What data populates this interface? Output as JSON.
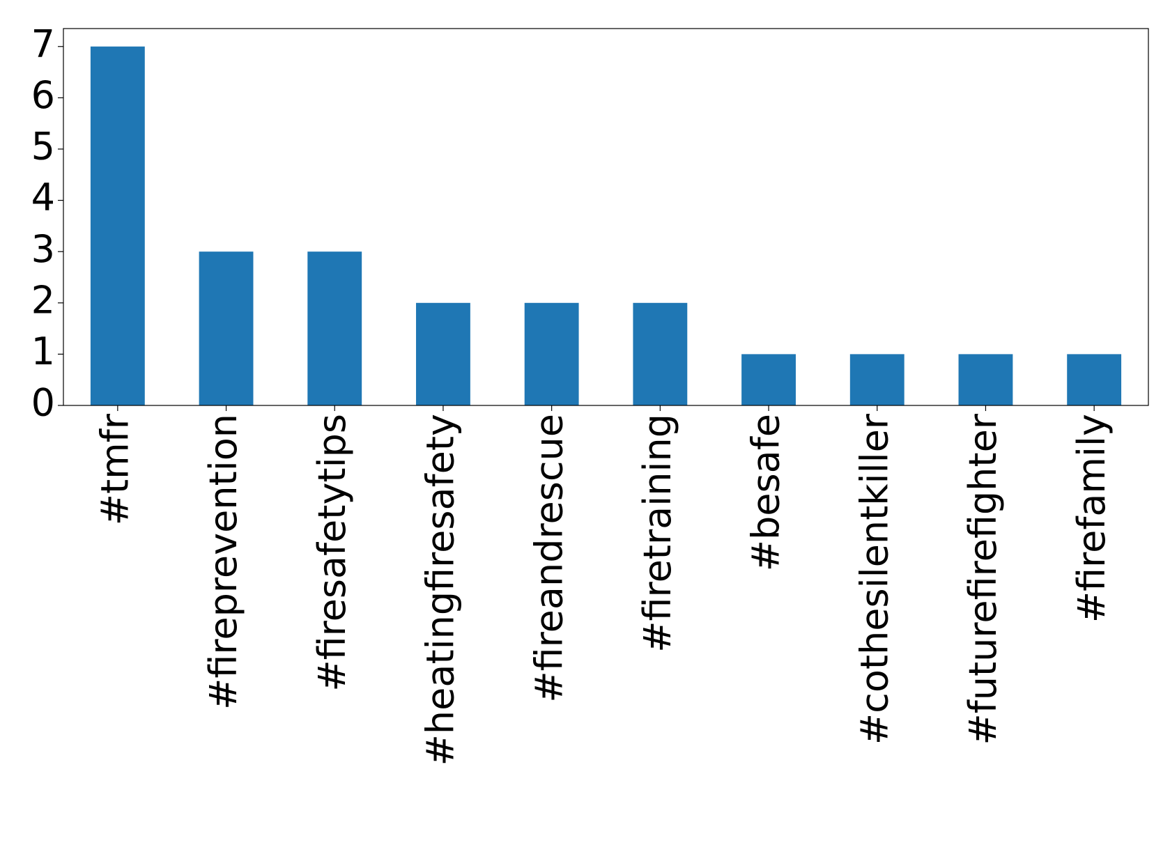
{
  "chart_data": {
    "type": "bar",
    "categories": [
      "#tmfr",
      "#fireprevention",
      "#firesafetytips",
      "#heatingfiresafety",
      "#fireandrescue",
      "#firetraining",
      "#besafe",
      "#cothesilentkiller",
      "#futurefirefighter",
      "#firefamily"
    ],
    "values": [
      7,
      3,
      3,
      2,
      2,
      2,
      1,
      1,
      1,
      1
    ],
    "color": "#1f77b4",
    "ylim": [
      0,
      7.35
    ],
    "yticks": [
      0,
      1,
      2,
      3,
      4,
      5,
      6,
      7
    ],
    "grid": false
  }
}
